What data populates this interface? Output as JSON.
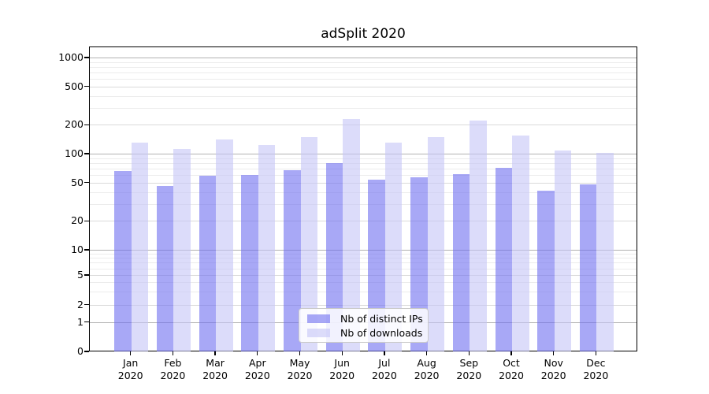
{
  "title": "adSplit 2020",
  "legend": {
    "items": [
      {
        "label": "Nb of distinct IPs",
        "color": "rgba(110,110,240,0.6)"
      },
      {
        "label": "Nb of downloads",
        "color": "rgba(196,196,246,0.6)"
      }
    ]
  },
  "chart_data": {
    "type": "bar",
    "title": "adSplit 2020",
    "categories": [
      "Jan",
      "Feb",
      "Mar",
      "Apr",
      "May",
      "Jun",
      "Jul",
      "Aug",
      "Sep",
      "Oct",
      "Nov",
      "Dec"
    ],
    "category_year_line": "2020",
    "series": [
      {
        "name": "Nb of distinct IPs",
        "color": "rgba(110,110,240,0.6)",
        "values": [
          67,
          47,
          60,
          61,
          68,
          81,
          55,
          58,
          62,
          73,
          42,
          49
        ]
      },
      {
        "name": "Nb of downloads",
        "color": "rgba(196,196,246,0.6)",
        "values": [
          133,
          115,
          144,
          126,
          152,
          233,
          133,
          152,
          225,
          156,
          110,
          104
        ]
      }
    ],
    "yscale": "symlog",
    "yticks": [
      0,
      1,
      2,
      5,
      10,
      20,
      50,
      100,
      200,
      500,
      1000
    ],
    "ylim": [
      0,
      1300
    ],
    "xlabel": "",
    "ylabel": "",
    "grid": "both",
    "legend_position": "lower-center"
  }
}
